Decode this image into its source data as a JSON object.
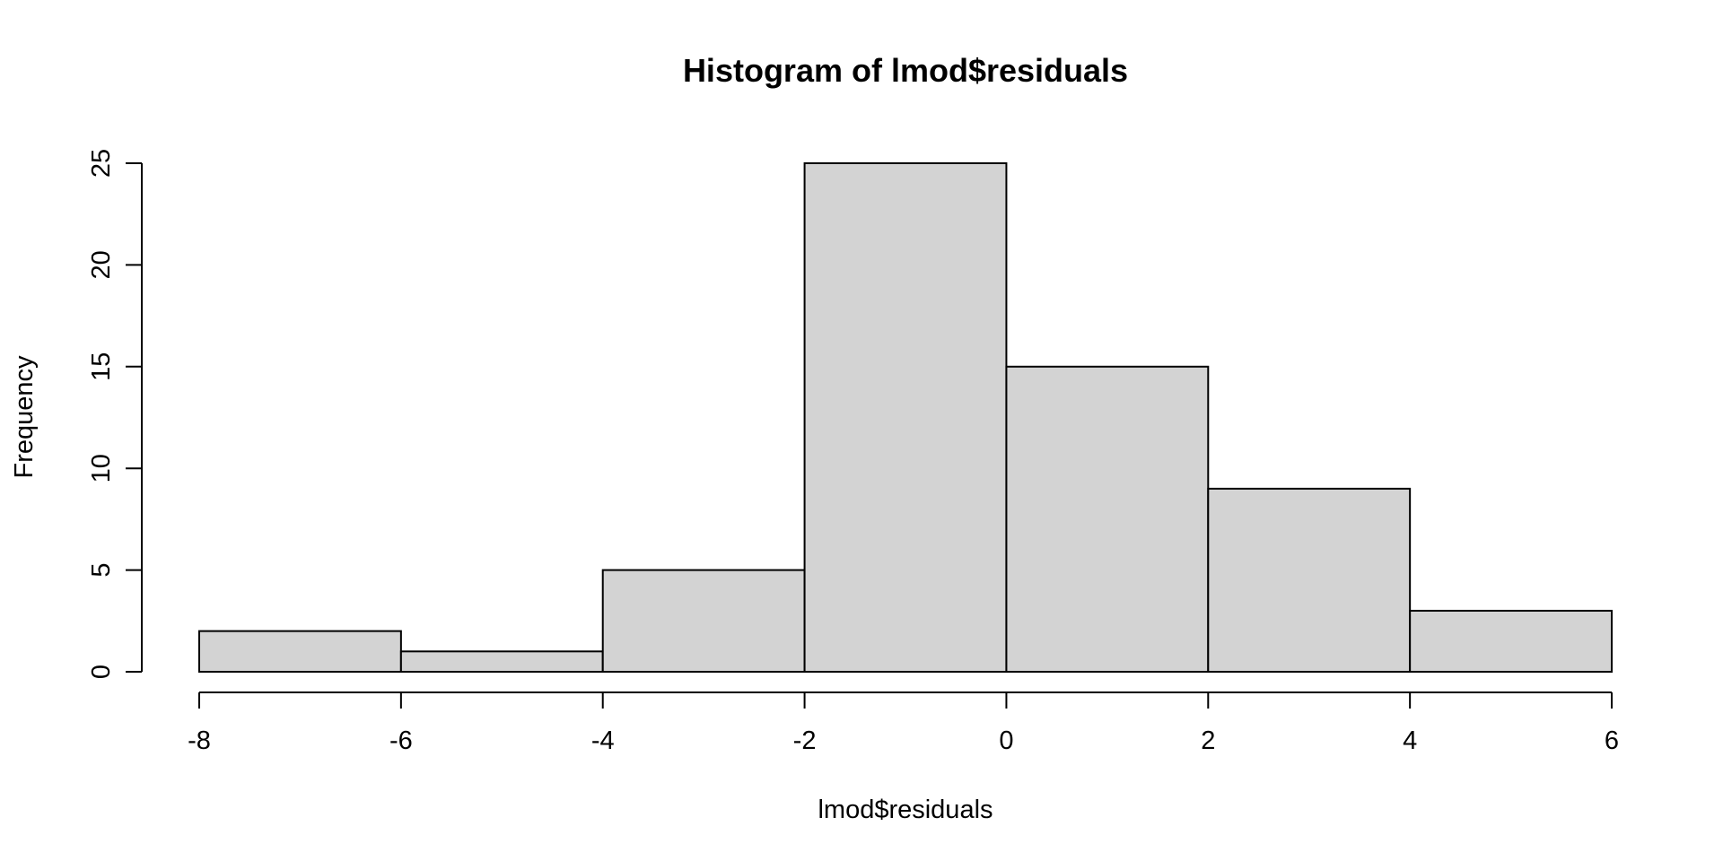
{
  "chart_data": {
    "type": "bar",
    "subtype": "histogram",
    "title": "Histogram of lmod$residuals",
    "xlabel": "lmod$residuals",
    "ylabel": "Frequency",
    "bins": [
      {
        "start": -8,
        "end": -6,
        "count": 2
      },
      {
        "start": -6,
        "end": -4,
        "count": 1
      },
      {
        "start": -4,
        "end": -2,
        "count": 5
      },
      {
        "start": -2,
        "end": 0,
        "count": 25
      },
      {
        "start": 0,
        "end": 2,
        "count": 15
      },
      {
        "start": 2,
        "end": 4,
        "count": 9
      },
      {
        "start": 4,
        "end": 6,
        "count": 3
      }
    ],
    "xlim": [
      -8,
      6
    ],
    "ylim": [
      0,
      25
    ],
    "xticks": [
      "-8",
      "-6",
      "-4",
      "-2",
      "0",
      "2",
      "4",
      "6"
    ],
    "yticks": [
      "0",
      "5",
      "10",
      "15",
      "20",
      "25"
    ],
    "bar_color": "#d3d3d3",
    "border_color": "#000000",
    "grid": false,
    "legend": "none"
  }
}
